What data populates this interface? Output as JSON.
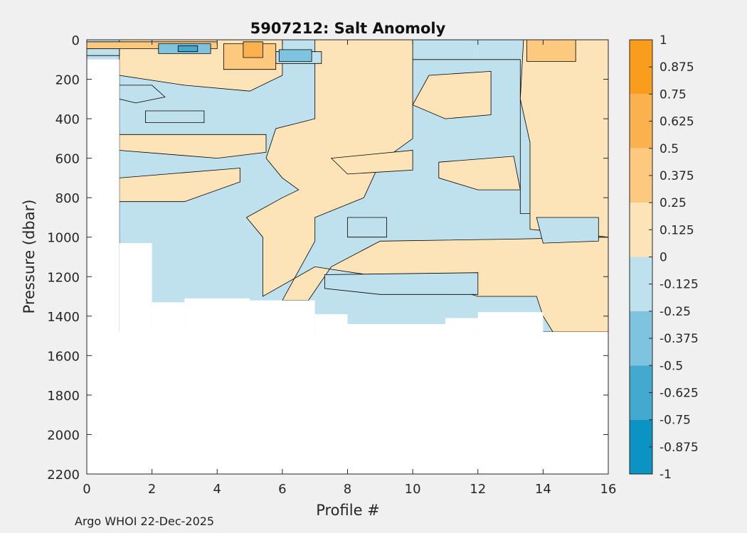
{
  "chart_data": {
    "type": "heatmap",
    "title": "5907212: Salt Anomoly",
    "xlabel": "Profile #",
    "ylabel": "Pressure (dbar)",
    "xlim": [
      0,
      16
    ],
    "ylim": [
      0,
      2200
    ],
    "y_reversed": true,
    "grid": false,
    "x_ticks": [
      0,
      2,
      4,
      6,
      8,
      10,
      12,
      14,
      16
    ],
    "y_ticks": [
      0,
      200,
      400,
      600,
      800,
      1000,
      1200,
      1400,
      1600,
      1800,
      2000,
      2200
    ],
    "colorbar": {
      "ticks": [
        1,
        0.875,
        0.75,
        0.625,
        0.5,
        0.375,
        0.25,
        0.125,
        0,
        -0.125,
        -0.25,
        -0.375,
        -0.5,
        -0.625,
        -0.75,
        -0.875,
        -1
      ],
      "tick_labels": [
        "1",
        "0.875",
        "0.75",
        "0.625",
        "0.5",
        "0.375",
        "0.25",
        "0.125",
        "0",
        "-0.125",
        "-0.25",
        "-0.375",
        "-0.5",
        "-0.625",
        "-0.75",
        "-0.875",
        "-1"
      ],
      "bands": [
        {
          "from": 0.75,
          "to": 1,
          "color": "#fb9d1c"
        },
        {
          "from": 0.5,
          "to": 0.75,
          "color": "#fbb24e"
        },
        {
          "from": 0.25,
          "to": 0.5,
          "color": "#fcc97f"
        },
        {
          "from": 0,
          "to": 0.25,
          "color": "#fde3b8"
        },
        {
          "from": -0.25,
          "to": 0,
          "color": "#bfe0ed"
        },
        {
          "from": -0.5,
          "to": -0.25,
          "color": "#7fc4df"
        },
        {
          "from": -0.75,
          "to": -0.5,
          "color": "#43a9cf"
        },
        {
          "from": -1,
          "to": -0.75,
          "color": "#0b93c3"
        }
      ]
    },
    "profile_max_pressure": [
      {
        "x0": 0,
        "x1": 1,
        "max_p": 100
      },
      {
        "x0": 1,
        "x1": 2,
        "max_p": 1030
      },
      {
        "x0": 2,
        "x1": 3,
        "max_p": 1330
      },
      {
        "x0": 3,
        "x1": 5,
        "max_p": 1310
      },
      {
        "x0": 5,
        "x1": 7,
        "max_p": 1320
      },
      {
        "x0": 7,
        "x1": 8,
        "max_p": 1390
      },
      {
        "x0": 8,
        "x1": 11,
        "max_p": 1440
      },
      {
        "x0": 11,
        "x1": 12,
        "max_p": 1410
      },
      {
        "x0": 12,
        "x1": 14,
        "max_p": 1380
      },
      {
        "x0": 14,
        "x1": 16,
        "max_p": 1480
      }
    ],
    "regions": [
      {
        "anomaly": -0.125,
        "points": [
          [
            1,
            100
          ],
          [
            13.3,
            100
          ],
          [
            13.3,
            880
          ],
          [
            16,
            880
          ],
          [
            16,
            1480
          ],
          [
            1,
            1480
          ]
        ]
      },
      {
        "anomaly": 0.125,
        "points": [
          [
            7,
            0
          ],
          [
            10,
            0
          ],
          [
            10,
            500
          ],
          [
            9,
            620
          ],
          [
            8.5,
            800
          ],
          [
            7,
            900
          ],
          [
            7,
            1020
          ],
          [
            6,
            1320
          ],
          [
            6.8,
            1320
          ],
          [
            7.5,
            1150
          ],
          [
            9,
            1020
          ],
          [
            13,
            1010
          ],
          [
            16,
            1000
          ],
          [
            16,
            1480
          ],
          [
            14.3,
            1480
          ],
          [
            14,
            1400
          ],
          [
            13.8,
            1300
          ],
          [
            12,
            1300
          ],
          [
            11,
            1250
          ],
          [
            9,
            1200
          ],
          [
            7,
            1150
          ],
          [
            5.4,
            1300
          ],
          [
            5.4,
            1000
          ],
          [
            4.9,
            900
          ],
          [
            6,
            800
          ],
          [
            6.5,
            760
          ],
          [
            6,
            700
          ],
          [
            5.5,
            600
          ],
          [
            5.8,
            450
          ],
          [
            7,
            400
          ]
        ]
      },
      {
        "anomaly": 0.125,
        "points": [
          [
            1,
            0
          ],
          [
            6,
            0
          ],
          [
            6,
            180
          ],
          [
            5,
            260
          ],
          [
            3,
            230
          ],
          [
            1,
            180
          ]
        ]
      },
      {
        "anomaly": 0.125,
        "points": [
          [
            1,
            480
          ],
          [
            5.5,
            480
          ],
          [
            5.5,
            570
          ],
          [
            4,
            600
          ],
          [
            1,
            560
          ]
        ]
      },
      {
        "anomaly": 0.125,
        "points": [
          [
            1,
            700
          ],
          [
            4.7,
            650
          ],
          [
            4.7,
            720
          ],
          [
            3,
            820
          ],
          [
            1,
            820
          ]
        ]
      },
      {
        "anomaly": 0.125,
        "points": [
          [
            10.5,
            180
          ],
          [
            12.4,
            160
          ],
          [
            12.4,
            380
          ],
          [
            11,
            400
          ],
          [
            10,
            330
          ]
        ]
      },
      {
        "anomaly": 0.125,
        "points": [
          [
            10.8,
            620
          ],
          [
            13.1,
            590
          ],
          [
            13.3,
            760
          ],
          [
            12,
            760
          ],
          [
            10.8,
            700
          ]
        ]
      },
      {
        "anomaly": 0.125,
        "points": [
          [
            7.5,
            600
          ],
          [
            10,
            560
          ],
          [
            10,
            660
          ],
          [
            8,
            680
          ]
        ]
      },
      {
        "anomaly": 0.125,
        "points": [
          [
            13.4,
            0
          ],
          [
            16,
            0
          ],
          [
            16,
            1000
          ],
          [
            13.6,
            960
          ],
          [
            13.6,
            520
          ],
          [
            13.3,
            300
          ]
        ]
      },
      {
        "anomaly": -0.125,
        "points": [
          [
            13.8,
            900
          ],
          [
            15.7,
            900
          ],
          [
            15.7,
            1020
          ],
          [
            14,
            1030
          ]
        ]
      },
      {
        "anomaly": -0.125,
        "points": [
          [
            7.3,
            1190
          ],
          [
            12,
            1180
          ],
          [
            12,
            1290
          ],
          [
            9,
            1290
          ],
          [
            7.3,
            1260
          ]
        ]
      },
      {
        "anomaly": -0.125,
        "points": [
          [
            8,
            900
          ],
          [
            9.2,
            900
          ],
          [
            9.2,
            1000
          ],
          [
            8,
            1000
          ]
        ]
      },
      {
        "anomaly": -0.25,
        "points": [
          [
            1,
            230
          ],
          [
            2,
            230
          ],
          [
            2.4,
            290
          ],
          [
            1.5,
            320
          ],
          [
            1,
            300
          ]
        ]
      },
      {
        "anomaly": -0.25,
        "points": [
          [
            1.8,
            360
          ],
          [
            3.6,
            360
          ],
          [
            3.6,
            420
          ],
          [
            1.8,
            420
          ]
        ]
      },
      {
        "anomaly": -0.25,
        "points": [
          [
            5.8,
            60
          ],
          [
            7.2,
            60
          ],
          [
            7.2,
            120
          ],
          [
            5.8,
            120
          ]
        ]
      },
      {
        "anomaly": -0.125,
        "points": [
          [
            0,
            45
          ],
          [
            1,
            45
          ],
          [
            1,
            80
          ],
          [
            0,
            80
          ]
        ]
      },
      {
        "anomaly": 0.375,
        "points": [
          [
            4.2,
            20
          ],
          [
            5.8,
            20
          ],
          [
            5.8,
            150
          ],
          [
            4.2,
            150
          ]
        ]
      },
      {
        "anomaly": 0.625,
        "points": [
          [
            4.8,
            10
          ],
          [
            5.4,
            10
          ],
          [
            5.4,
            90
          ],
          [
            4.8,
            90
          ]
        ]
      },
      {
        "anomaly": 0.375,
        "points": [
          [
            13.5,
            0
          ],
          [
            15,
            0
          ],
          [
            15,
            110
          ],
          [
            13.5,
            110
          ]
        ]
      },
      {
        "anomaly": 0.375,
        "points": [
          [
            0,
            10
          ],
          [
            4,
            10
          ],
          [
            4,
            45
          ],
          [
            0,
            45
          ]
        ]
      },
      {
        "anomaly": -0.375,
        "points": [
          [
            2.2,
            20
          ],
          [
            3.8,
            20
          ],
          [
            3.8,
            70
          ],
          [
            2.2,
            70
          ]
        ]
      },
      {
        "anomaly": -0.625,
        "points": [
          [
            2.8,
            30
          ],
          [
            3.4,
            30
          ],
          [
            3.4,
            60
          ],
          [
            2.8,
            60
          ]
        ]
      },
      {
        "anomaly": -0.375,
        "points": [
          [
            5.9,
            50
          ],
          [
            6.9,
            50
          ],
          [
            6.9,
            110
          ],
          [
            5.9,
            110
          ]
        ]
      }
    ]
  },
  "footer": {
    "note": "Argo WHOI 22-Dec-2025"
  }
}
